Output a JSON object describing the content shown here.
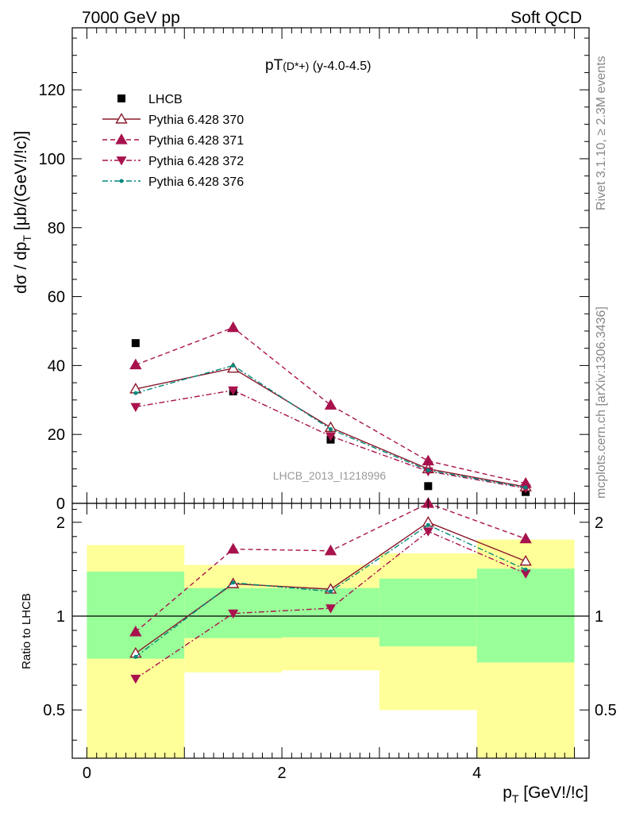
{
  "header": {
    "left": "7000 GeV pp",
    "right": "Soft QCD"
  },
  "side_labels": {
    "rivet": "Rivet 3.1.10, ≥ 2.3M events",
    "mcplots": "mcplots.cern.ch [arXiv:1306.3436]"
  },
  "chart_data": [
    {
      "type": "scatter",
      "panel": "main",
      "title": "pT(D*+) (y-4.0-4.5)",
      "title_parts": {
        "main": "pT",
        "sub": "(D*+)",
        "rest": " (y-4.0-4.5)"
      },
      "ylabel": "dσ / dp_T [μb/(GeV!/!c)]",
      "ylabel_parts": {
        "a": "dσ / dp",
        "sub": "T",
        "b": " [μb/(GeV!/!c)]"
      },
      "ylim": [
        0,
        138
      ],
      "yticks": [
        0,
        20,
        40,
        60,
        80,
        100,
        120
      ],
      "ytick_labels": [
        "0",
        "20",
        "40",
        "60",
        "80",
        "100",
        "120"
      ],
      "xlim": [
        -0.15,
        5.15
      ],
      "watermark": "LHCB_2013_I1218996",
      "legend_position": "top-left",
      "x": [
        0.5,
        1.5,
        2.5,
        3.5,
        4.5
      ],
      "series": [
        {
          "name": "LHCB",
          "color": "#000000",
          "marker": "square",
          "line": "none",
          "values": [
            46.5,
            32.5,
            18.5,
            5.0,
            3.3
          ]
        },
        {
          "name": "Pythia 6.428 370",
          "color": "#8b1a2b",
          "marker": "triangle-open",
          "line": "solid",
          "values": [
            33.2,
            39.2,
            22.0,
            10.0,
            4.8
          ]
        },
        {
          "name": "Pythia 6.428 371",
          "color": "#a8124d",
          "marker": "triangle",
          "line": "dashed",
          "values": [
            40.2,
            51.0,
            28.5,
            12.3,
            5.8
          ]
        },
        {
          "name": "Pythia 6.428 372",
          "color": "#a8124d",
          "marker": "triangle-down",
          "line": "dashdot",
          "values": [
            28.0,
            32.8,
            19.5,
            9.3,
            4.4
          ]
        },
        {
          "name": "Pythia 6.428 376",
          "color": "#00897b",
          "marker": "dot",
          "line": "dashdot",
          "values": [
            32.0,
            40.0,
            21.5,
            9.6,
            4.6
          ]
        }
      ]
    },
    {
      "type": "scatter",
      "panel": "ratio",
      "ylabel": "Ratio to LHCB",
      "ylim": [
        0.35,
        2.3
      ],
      "yticks": [
        0.5,
        1,
        2
      ],
      "ytick_labels": [
        "0.5",
        "1",
        "2"
      ],
      "xlim": [
        -0.15,
        5.15
      ],
      "xticks": [
        0,
        2,
        4
      ],
      "xtick_labels": [
        "0",
        "2",
        "4"
      ],
      "xlabel": "p_T [GeV!/!c]",
      "xlabel_parts": {
        "a": "p",
        "sub": "T",
        "b": " [GeV!/!c]"
      },
      "bands": [
        {
          "x0": 0,
          "x1": 1,
          "inner": [
            0.73,
            1.39
          ],
          "outer": [
            0.35,
            1.69
          ]
        },
        {
          "x0": 1,
          "x1": 2,
          "inner": [
            0.85,
            1.23
          ],
          "outer": [
            0.66,
            1.46
          ]
        },
        {
          "x0": 2,
          "x1": 3,
          "inner": [
            0.855,
            1.23
          ],
          "outer": [
            0.67,
            1.46
          ]
        },
        {
          "x0": 3,
          "x1": 4,
          "inner": [
            0.8,
            1.32
          ],
          "outer": [
            0.5,
            1.59
          ]
        },
        {
          "x0": 4,
          "x1": 5,
          "inner": [
            0.71,
            1.42
          ],
          "outer": [
            0.35,
            1.76
          ]
        }
      ],
      "band_colors": {
        "inner": "#99ff99",
        "outer": "#ffff99"
      },
      "x": [
        0.5,
        1.5,
        2.5,
        3.5,
        4.5
      ],
      "series": [
        {
          "name": "Pythia 6.428 370",
          "color": "#8b1a2b",
          "marker": "triangle-open",
          "line": "solid",
          "values": [
            0.76,
            1.27,
            1.22,
            2.0,
            1.5
          ]
        },
        {
          "name": "Pythia 6.428 371",
          "color": "#a8124d",
          "marker": "triangle",
          "line": "dashed",
          "values": [
            0.89,
            1.64,
            1.62,
            2.3,
            1.77
          ]
        },
        {
          "name": "Pythia 6.428 372",
          "color": "#a8124d",
          "marker": "triangle-down",
          "line": "dashdot",
          "values": [
            0.63,
            1.02,
            1.06,
            1.87,
            1.37
          ]
        },
        {
          "name": "Pythia 6.428 376",
          "color": "#00897b",
          "marker": "dot",
          "line": "dashdot",
          "values": [
            0.74,
            1.28,
            1.2,
            1.96,
            1.41
          ]
        }
      ]
    }
  ]
}
